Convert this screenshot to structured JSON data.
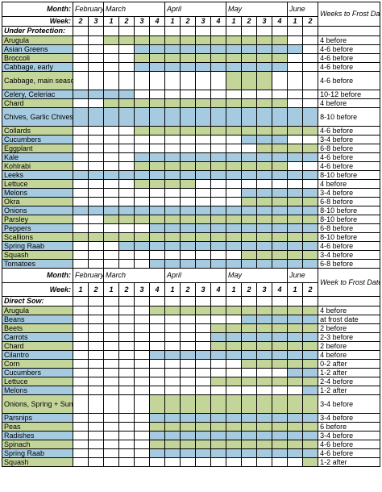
{
  "colors": {
    "green": "#c4d59a",
    "blue": "#a6cbe0"
  },
  "top_header": {
    "month_label": "Month:",
    "months": [
      "February",
      "March",
      "April",
      "May",
      "June"
    ],
    "weeks_to_frost": "Weeks to Frost Date",
    "week_label": "Week:",
    "weeks": [
      "2",
      "3",
      "1",
      "2",
      "3",
      "4",
      "1",
      "2",
      "3",
      "4",
      "1",
      "2",
      "3",
      "4",
      "1",
      "2"
    ]
  },
  "under_protection": {
    "title": "Under Protection:",
    "rows": [
      {
        "name": "Arugula",
        "color": "green",
        "timing": "4 before",
        "cells": "..gggggggggggg.."
      },
      {
        "name": "Asian Greens",
        "color": "blue",
        "timing": "4-6 before",
        "cells": "....bbbbbbbbbbb."
      },
      {
        "name": "Broccoli",
        "color": "green",
        "timing": "4-6 before",
        "cells": "....gggggggggg.."
      },
      {
        "name": "Cabbage, early",
        "color": "blue",
        "timing": "4-6 before",
        "cells": "....bbbbbbbbbb.."
      },
      {
        "name": "Cabbage, main season",
        "color": "green",
        "timing": "4-6 before",
        "cells": "..........ggg..."
      },
      {
        "name": "Celery, Celeriac",
        "color": "blue",
        "timing": "10-12 before",
        "cells": "bbbb............"
      },
      {
        "name": "Chard",
        "color": "green",
        "timing": "4 before",
        "cells": "..gggggggggggg.."
      },
      {
        "name": "Chives, Garlic Chives",
        "color": "blue",
        "timing": "8-10 before",
        "cells": "bbbbbbbbbbbbbbbb"
      },
      {
        "name": "Collards",
        "color": "green",
        "timing": "4-6 before",
        "cells": "....gggggggggggg"
      },
      {
        "name": "Cucumbers",
        "color": "blue",
        "timing": "3-4 before",
        "cells": "...........bbb.."
      },
      {
        "name": "Eggplant",
        "color": "green",
        "timing": "6-8 before",
        "cells": "............gggg"
      },
      {
        "name": "Kale",
        "color": "blue",
        "timing": "4-6 before",
        "cells": "....bbbbbbbbbbbb"
      },
      {
        "name": "Kohlrabi",
        "color": "green",
        "timing": "4-6 before",
        "cells": "....gggggggggg.."
      },
      {
        "name": "Leeks",
        "color": "blue",
        "timing": "8-10 before",
        "cells": "bbbbbbbbbbbbbbbb"
      },
      {
        "name": "Lettuce",
        "color": "green",
        "timing": "4 before",
        "cells": "....gggg........"
      },
      {
        "name": "Melons",
        "color": "blue",
        "timing": "3-4 before",
        "cells": "...........bbbbb"
      },
      {
        "name": "Okra",
        "color": "green",
        "timing": "6-8 before",
        "cells": "...........ggggg"
      },
      {
        "name": "Onions",
        "color": "blue",
        "timing": "8-10 before",
        "cells": "bbbbbbbbbbbbbbbb"
      },
      {
        "name": "Parsley",
        "color": "green",
        "timing": "8-10 before",
        "cells": "..gggggggggggggg"
      },
      {
        "name": "Peppers",
        "color": "blue",
        "timing": "6-8 before",
        "cells": ".....bbbbbbbbbbb"
      },
      {
        "name": "Scallions",
        "color": "green",
        "timing": "8-10 before",
        "cells": "gggggggggggggggg"
      },
      {
        "name": "Spring Raab",
        "color": "blue",
        "timing": "4-6 before",
        "cells": "...bbbbbbbbbbbbb"
      },
      {
        "name": "Squash",
        "color": "green",
        "timing": "3-4 before",
        "cells": "...........ggggg"
      },
      {
        "name": "Tomatoes",
        "color": "blue",
        "timing": "6-8 before",
        "cells": ".....bbbbbbbbbbb"
      }
    ]
  },
  "mid_header": {
    "month_label": "Month:",
    "months": [
      "February",
      "March",
      "April",
      "May",
      "June"
    ],
    "week_to_frost": "Week to Frost Date",
    "week_label": "Week:",
    "weeks": [
      "1",
      "2",
      "1",
      "2",
      "3",
      "4",
      "1",
      "2",
      "3",
      "4",
      "1",
      "2",
      "3",
      "4",
      "1",
      "2"
    ]
  },
  "direct_sow": {
    "title": "Direct Sow:",
    "rows": [
      {
        "name": "Arugula",
        "color": "green",
        "timing": "4 before",
        "cells": ".....ggggggggggg"
      },
      {
        "name": "Beans",
        "color": "blue",
        "timing": "at frost date",
        "cells": "...........bbbbb"
      },
      {
        "name": "Beets",
        "color": "green",
        "timing": "2  before",
        "cells": ".........ggggggg"
      },
      {
        "name": "Carrots",
        "color": "blue",
        "timing": "2-3  before",
        "cells": ".........bbbbbbb"
      },
      {
        "name": "Chard",
        "color": "green",
        "timing": "2 before",
        "cells": ".........ggggggg"
      },
      {
        "name": "Cilantro",
        "color": "blue",
        "timing": "4 before",
        "cells": ".....bbbbbbbbbbb"
      },
      {
        "name": "Corn",
        "color": "green",
        "timing": "0-2 after",
        "cells": "...........ggggg"
      },
      {
        "name": "Cucumbers",
        "color": "blue",
        "timing": "1-2 after",
        "cells": "..............bb"
      },
      {
        "name": "Lettuce",
        "color": "green",
        "timing": "2-4 before",
        "cells": ".........ggggggg"
      },
      {
        "name": "Melons",
        "color": "blue",
        "timing": "1-2 after",
        "cells": "...............b"
      },
      {
        "name": "Onions, Spring + Summer",
        "color": "green",
        "timing": "3-4 before",
        "cells": ".....ggggggggggg"
      },
      {
        "name": "Parsnips",
        "color": "blue",
        "timing": "3-4 before",
        "cells": ".....bbbbbbbbbbb"
      },
      {
        "name": "Peas",
        "color": "green",
        "timing": "6 before",
        "cells": ".....ggggggggggg"
      },
      {
        "name": "Radishes",
        "color": "blue",
        "timing": "3-4 before",
        "cells": ".....bbbbbbbbbbb"
      },
      {
        "name": "Spinach",
        "color": "green",
        "timing": "4-6 before",
        "cells": ".....ggggggggggg"
      },
      {
        "name": "Spring Raab",
        "color": "blue",
        "timing": "4-6 before",
        "cells": ".....bbbbbbbbbbb"
      },
      {
        "name": "Squash",
        "color": "green",
        "timing": "1-2 after",
        "cells": "...............g"
      }
    ]
  }
}
